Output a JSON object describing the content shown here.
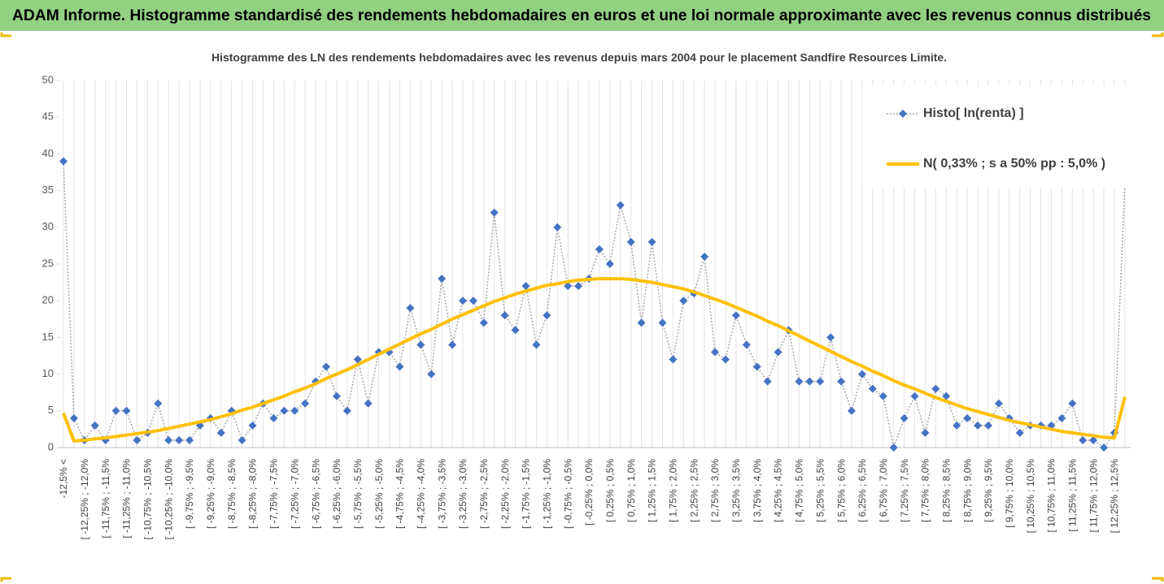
{
  "header": {
    "title": "ADAM Informe. Histogramme standardisé des rendements hebdomadaires en euros et une loi normale approximante avec les revenus connus distribués"
  },
  "chart_data": {
    "type": "line",
    "title": "Histogramme des LN des rendements hebdomadaires avec les revenus depuis mars 2004 pour le placement Sandfire Resources Limite.",
    "categories": [
      "-12,5% <",
      null,
      "[ -12,25% ; -12,0%",
      null,
      "[ -11,75% ; -11,5%",
      null,
      "[ -11,25% ; -11,0%",
      null,
      "[ -10,75% ; -10,5%",
      null,
      "[ -10,25% ; -10,0%",
      null,
      "[ -9,75% ; -9,5%",
      null,
      "[ -9,25% ; -9,0%",
      null,
      "[ -8,75% ; -8,5%",
      null,
      "[ -8,25% ; -8,0%",
      null,
      "[ -7,75% ; -7,5%",
      null,
      "[ -7,25% ; -7,0%",
      null,
      "[ -6,75% ; -6,5%",
      null,
      "[ -6,25% ; -6,0%",
      null,
      "[ -5,75% ; -5,5%",
      null,
      "[ -5,25% ; -5,0%",
      null,
      "[ -4,75% ; -4,5%",
      null,
      "[ -4,25% ; -4,0%",
      null,
      "[ -3,75% ; -3,5%",
      null,
      "[ -3,25% ; -3,0%",
      null,
      "[ -2,75% ; -2,5%",
      null,
      "[ -2,25% ; -2,0%",
      null,
      "[ -1,75% ; -1,5%",
      null,
      "[ -1,25% ; -1,0%",
      null,
      "[ -0,75% ; -0,5%",
      null,
      "[ -0,25% ; 0,0%",
      null,
      "[ 0,25% ; 0,5%",
      null,
      "[ 0,75% ; 1,0%",
      null,
      "[ 1,25% ; 1,5%",
      null,
      "[ 1,75% ; 2,0%",
      null,
      "[ 2,25% ; 2,5%",
      null,
      "[ 2,75% ; 3,0%",
      null,
      "[ 3,25% ; 3,5%",
      null,
      "[ 3,75% ; 4,0%",
      null,
      "[ 4,25% ; 4,5%",
      null,
      "[ 4,75% ; 5,0%",
      null,
      "[ 5,25% ; 5,5%",
      null,
      "[ 5,75% ; 6,0%",
      null,
      "[ 6,25% ; 6,5%",
      null,
      "[ 6,75% ; 7,0%",
      null,
      "[ 7,25% ; 7,5%",
      null,
      "[ 7,75% ; 8,0%",
      null,
      "[ 8,25% ; 8,5%",
      null,
      "[ 8,75% ; 9,0%",
      null,
      "[ 9,25% ; 9,5%",
      null,
      "[ 9,75% ; 10,0%",
      null,
      "[ 10,25% ; 10,5%",
      null,
      "[ 10,75% ; 11,0%",
      null,
      "[ 11,25% ; 11,5%",
      null,
      "[ 11,75% ; 12,0%",
      null,
      "[ 12,25% ; 12,5%",
      null
    ],
    "series": [
      {
        "name": "Histo[ ln(renta) ]",
        "color": "#4472c4",
        "line_color": "#a6a6a6",
        "values": [
          39,
          4,
          1,
          3,
          1,
          5,
          5,
          1,
          2,
          6,
          1,
          1,
          1,
          3,
          4,
          2,
          5,
          1,
          3,
          6,
          4,
          5,
          5,
          6,
          9,
          11,
          7,
          5,
          12,
          6,
          13,
          13,
          11,
          19,
          14,
          10,
          23,
          14,
          20,
          20,
          17,
          32,
          18,
          16,
          22,
          14,
          18,
          30,
          22,
          22,
          23,
          27,
          25,
          33,
          28,
          17,
          28,
          17,
          12,
          20,
          21,
          26,
          13,
          12,
          18,
          14,
          11,
          9,
          13,
          16,
          9,
          9,
          9,
          15,
          9,
          5,
          10,
          8,
          7,
          0,
          4,
          7,
          2,
          8,
          7,
          3,
          4,
          3,
          3,
          6,
          4,
          2,
          3,
          3,
          3,
          4,
          6,
          1,
          1,
          0,
          2,
          36
        ]
      },
      {
        "name": "N( 0,33% ; s a 50% pp : 5,0% )",
        "color": "#ffc000",
        "values": [
          4.7,
          0.9,
          1.0,
          1.2,
          1.3,
          1.5,
          1.7,
          1.9,
          2.1,
          2.3,
          2.6,
          2.9,
          3.2,
          3.5,
          3.8,
          4.2,
          4.6,
          5.1,
          5.5,
          6.0,
          6.5,
          7.0,
          7.6,
          8.1,
          8.7,
          9.4,
          10.0,
          10.6,
          11.3,
          12.0,
          12.7,
          13.4,
          14.1,
          14.8,
          15.5,
          16.1,
          16.8,
          17.5,
          18.1,
          18.7,
          19.3,
          19.9,
          20.4,
          20.9,
          21.3,
          21.7,
          22.1,
          22.3,
          22.6,
          22.8,
          22.9,
          23.0,
          23.0,
          23.0,
          22.9,
          22.7,
          22.5,
          22.2,
          21.9,
          21.6,
          21.2,
          20.7,
          20.2,
          19.7,
          19.1,
          18.5,
          17.9,
          17.2,
          16.6,
          15.9,
          15.2,
          14.5,
          13.8,
          13.1,
          12.4,
          11.7,
          11.1,
          10.4,
          9.8,
          9.1,
          8.5,
          8.0,
          7.4,
          6.8,
          6.3,
          5.8,
          5.3,
          4.9,
          4.5,
          4.1,
          3.7,
          3.4,
          3.1,
          2.8,
          2.5,
          2.2,
          2.0,
          1.8,
          1.6,
          1.4,
          1.3,
          6.9
        ]
      }
    ],
    "ylim": [
      0,
      50
    ],
    "yticks": [
      0,
      5,
      10,
      15,
      20,
      25,
      30,
      35,
      40,
      45,
      50
    ],
    "grid": true,
    "legend": "top-right"
  }
}
